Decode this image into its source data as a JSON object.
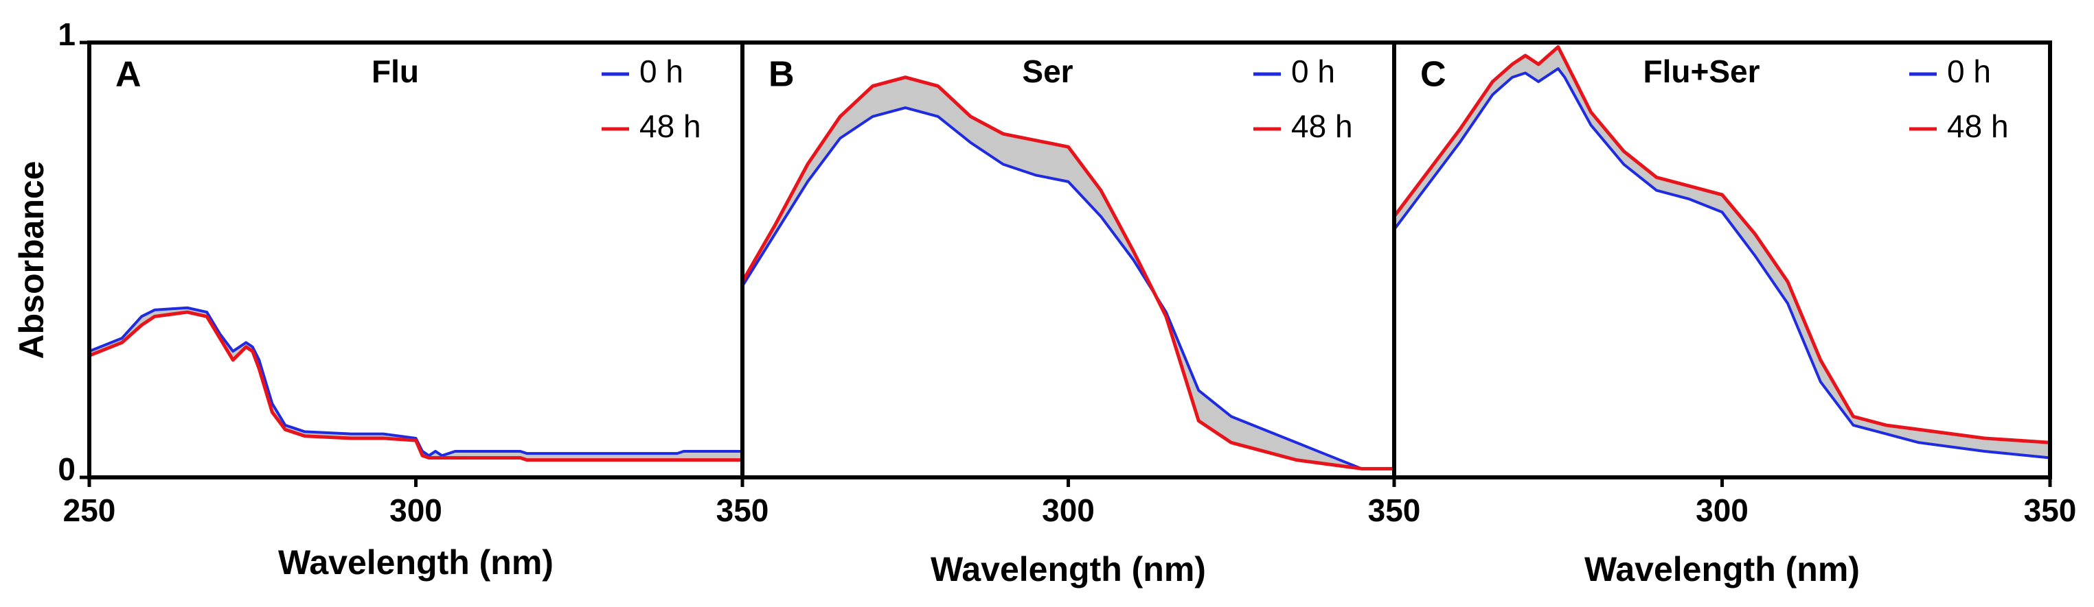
{
  "chart_data": [
    {
      "type": "line",
      "panel": "A",
      "title": "Flu",
      "xlabel": "Wavelength (nm)",
      "ylabel": "Absorbance",
      "x": [
        250,
        255,
        258,
        260,
        265,
        268,
        270,
        272,
        274,
        275,
        276,
        278,
        280,
        283,
        290,
        295,
        300,
        301,
        302,
        303,
        304,
        306,
        310,
        316,
        317,
        340,
        341,
        350
      ],
      "xlim": [
        250,
        350
      ],
      "xticks": [
        250,
        300,
        350
      ],
      "ylim": [
        0,
        1
      ],
      "yticks": [
        0,
        1
      ],
      "series": [
        {
          "name": "0 h",
          "color": "#1f2be0",
          "values": [
            0.29,
            0.32,
            0.37,
            0.385,
            0.39,
            0.38,
            0.33,
            0.29,
            0.31,
            0.3,
            0.27,
            0.17,
            0.12,
            0.105,
            0.1,
            0.1,
            0.09,
            0.06,
            0.05,
            0.06,
            0.05,
            0.06,
            0.06,
            0.06,
            0.055,
            0.055,
            0.06,
            0.06
          ]
        },
        {
          "name": "48 h",
          "color": "#e8141c",
          "values": [
            0.28,
            0.31,
            0.35,
            0.37,
            0.38,
            0.37,
            0.32,
            0.27,
            0.3,
            0.29,
            0.25,
            0.15,
            0.11,
            0.095,
            0.09,
            0.09,
            0.085,
            0.05,
            0.045,
            0.045,
            0.045,
            0.045,
            0.045,
            0.045,
            0.04,
            0.04,
            0.04,
            0.04
          ]
        }
      ]
    },
    {
      "type": "line",
      "panel": "B",
      "title": "Ser",
      "xlabel": "Wavelength (nm)",
      "x": [
        250,
        255,
        260,
        265,
        270,
        275,
        280,
        285,
        290,
        295,
        300,
        305,
        310,
        315,
        320,
        325,
        330,
        335,
        340,
        345,
        350
      ],
      "xlim": [
        250,
        350
      ],
      "xticks": [
        300,
        350
      ],
      "ylim": [
        0,
        1
      ],
      "series": [
        {
          "name": "0 h",
          "color": "#1f2be0",
          "values": [
            0.44,
            0.56,
            0.68,
            0.78,
            0.83,
            0.85,
            0.83,
            0.77,
            0.72,
            0.695,
            0.68,
            0.6,
            0.5,
            0.38,
            0.2,
            0.14,
            0.11,
            0.08,
            0.05,
            0.02,
            0.02
          ]
        },
        {
          "name": "48 h",
          "color": "#e8141c",
          "values": [
            0.45,
            0.58,
            0.72,
            0.83,
            0.9,
            0.92,
            0.9,
            0.83,
            0.79,
            0.775,
            0.76,
            0.66,
            0.52,
            0.37,
            0.13,
            0.08,
            0.06,
            0.04,
            0.03,
            0.02,
            0.02
          ]
        }
      ]
    },
    {
      "type": "line",
      "panel": "C",
      "title": "Flu+Ser",
      "xlabel": "Wavelength (nm)",
      "x": [
        250,
        255,
        260,
        265,
        268,
        270,
        272,
        275,
        276,
        280,
        285,
        290,
        295,
        300,
        305,
        310,
        315,
        320,
        325,
        330,
        340,
        350
      ],
      "xlim": [
        250,
        350
      ],
      "xticks": [
        300,
        350
      ],
      "ylim": [
        0,
        1
      ],
      "series": [
        {
          "name": "0 h",
          "color": "#1f2be0",
          "values": [
            0.57,
            0.67,
            0.77,
            0.88,
            0.92,
            0.93,
            0.91,
            0.94,
            0.92,
            0.81,
            0.72,
            0.66,
            0.64,
            0.61,
            0.51,
            0.4,
            0.22,
            0.12,
            0.1,
            0.08,
            0.06,
            0.045
          ]
        },
        {
          "name": "48 h",
          "color": "#e8141c",
          "values": [
            0.6,
            0.7,
            0.8,
            0.91,
            0.95,
            0.97,
            0.95,
            0.99,
            0.96,
            0.84,
            0.75,
            0.69,
            0.67,
            0.65,
            0.56,
            0.45,
            0.27,
            0.14,
            0.12,
            0.11,
            0.09,
            0.08
          ]
        }
      ]
    }
  ]
}
